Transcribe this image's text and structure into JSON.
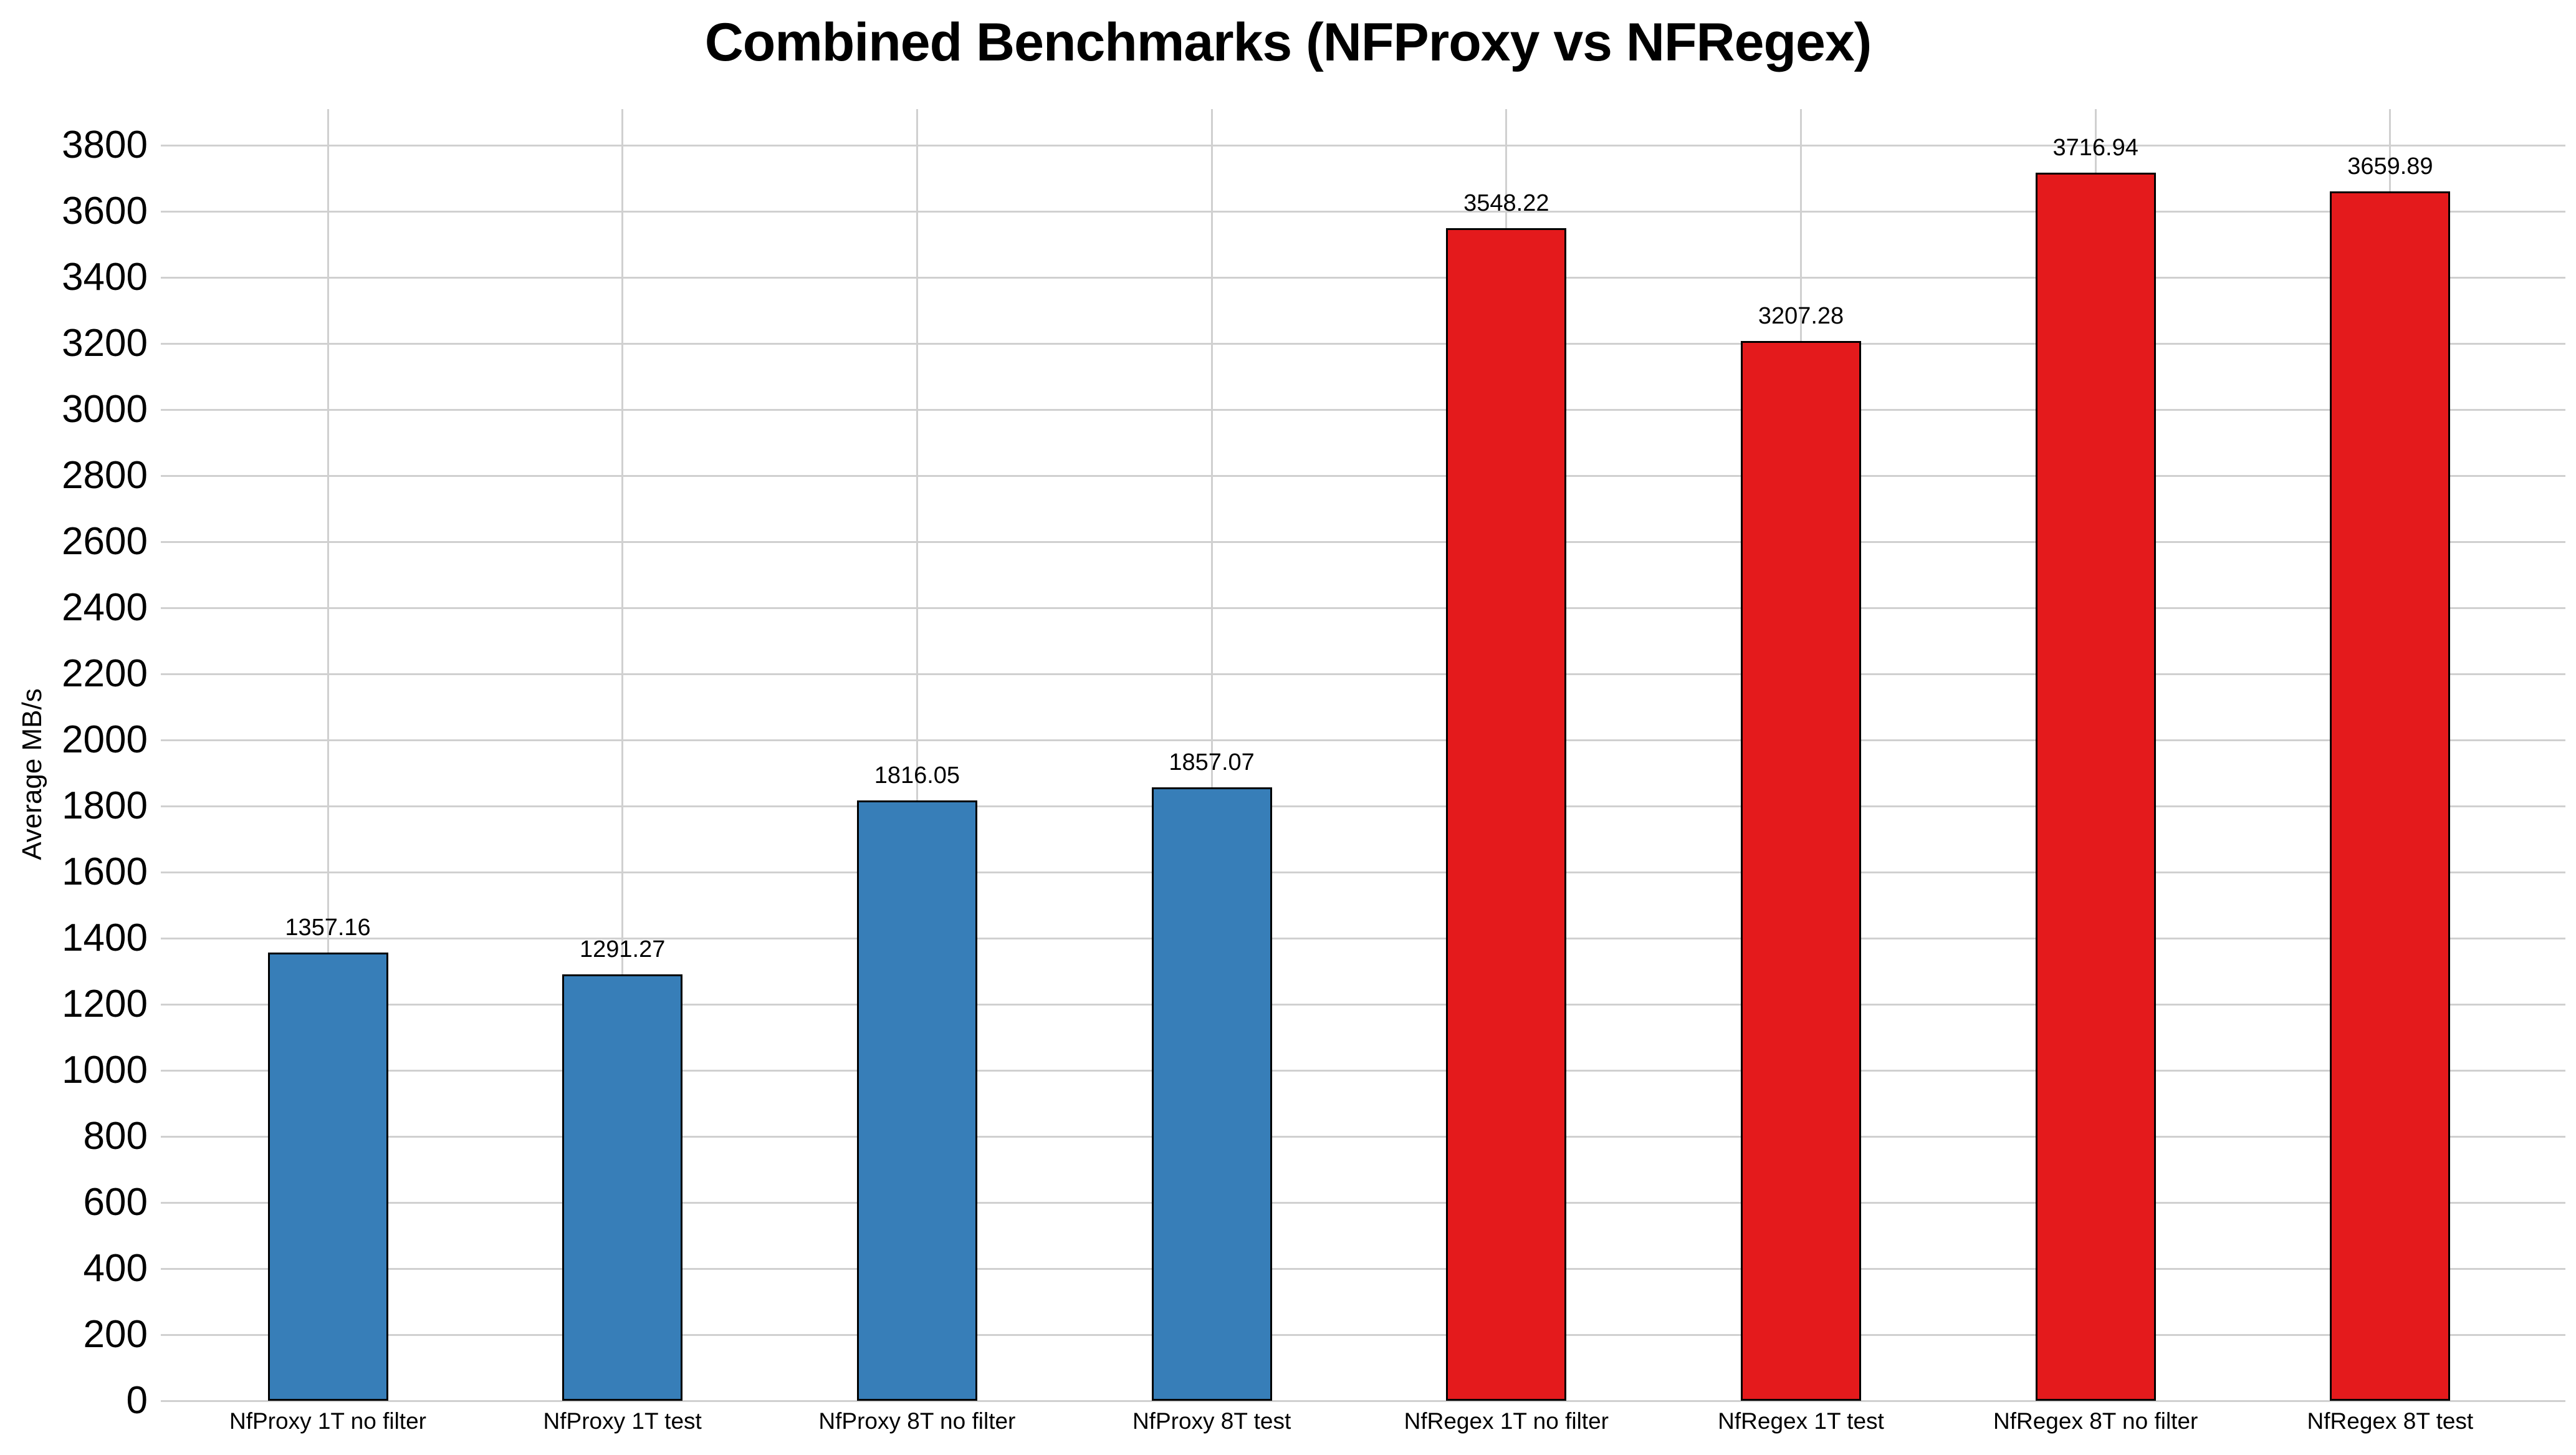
{
  "chart_data": {
    "type": "bar",
    "title": "Combined Benchmarks (NFProxy vs NFRegex)",
    "ylabel": "Average MB/s",
    "xlabel": "",
    "categories": [
      "NfProxy 1T no filter",
      "NfProxy 1T test",
      "NfProxy 8T no filter",
      "NfProxy 8T test",
      "NfRegex 1T no filter",
      "NfRegex 1T test",
      "NfRegex 8T no filter",
      "NfRegex 8T test"
    ],
    "values": [
      1357.16,
      1291.27,
      1816.05,
      1857.07,
      3548.22,
      3207.28,
      3716.94,
      3659.89
    ],
    "value_labels": [
      "1357.16",
      "1291.27",
      "1816.05",
      "1857.07",
      "3548.22",
      "3207.28",
      "3716.94",
      "3659.89"
    ],
    "bar_colors": [
      "#377eb8",
      "#377eb8",
      "#377eb8",
      "#377eb8",
      "#e41a1c",
      "#e41a1c",
      "#e41a1c",
      "#e41a1c"
    ],
    "series_colors": {
      "NFProxy": "#377eb8",
      "NFRegex": "#e41a1c"
    },
    "bar_edge_color": "#000000",
    "grid": true,
    "grid_color": "#d0d0d0",
    "background_color": "#ffffff",
    "text_color": "#000000",
    "legend_position": "none",
    "ylim": [
      0,
      3900
    ],
    "yticks": [
      0,
      200,
      400,
      600,
      800,
      1000,
      1200,
      1400,
      1600,
      1800,
      2000,
      2200,
      2400,
      2600,
      2800,
      3000,
      3200,
      3400,
      3600,
      3800
    ]
  }
}
